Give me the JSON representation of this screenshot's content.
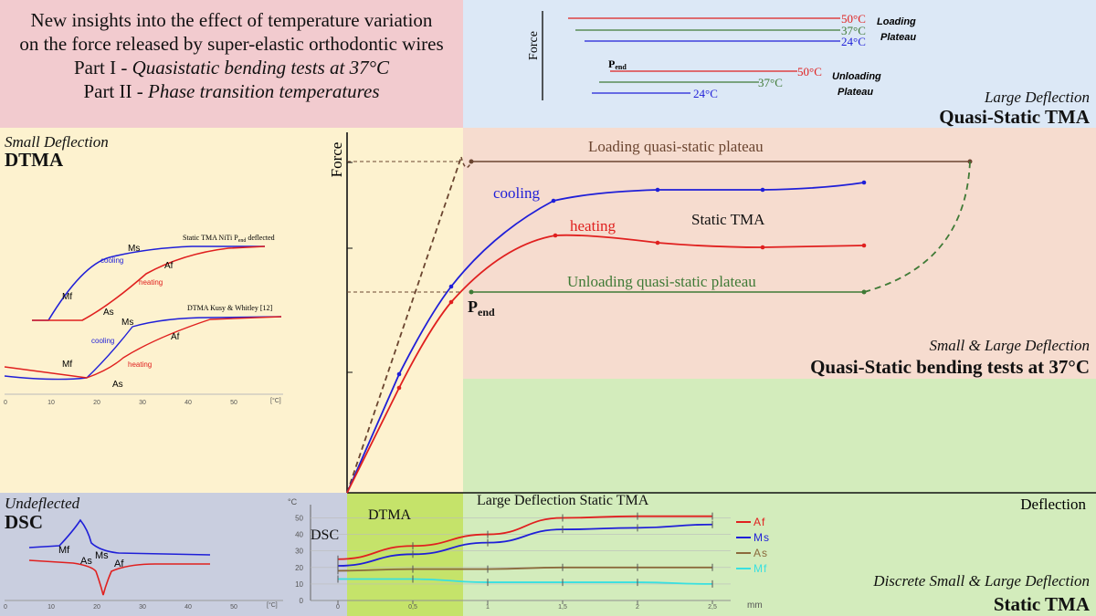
{
  "title": {
    "line1": "New insights into the effect of temperature variation",
    "line2": "on the force released by super-elastic orthodontic wires",
    "line3_prefix": "Part I - ",
    "line3_italic": "Quasistatic bending tests at 37°C",
    "line4_prefix": "Part II - ",
    "line4_italic": "Phase transition temperatures"
  },
  "top_right": {
    "y_label": "Force",
    "loading": [
      "50°C",
      "37°C",
      "24°C"
    ],
    "loading_label": [
      "Loading",
      "Plateau"
    ],
    "unloading": [
      "50°C",
      "37°C",
      "24°C"
    ],
    "unloading_label": [
      "Unloading",
      "Plateau"
    ],
    "pend": "P",
    "pend_sub": "end",
    "caption_italic": "Large Deflection",
    "caption_bold": "Quasi-Static TMA"
  },
  "left_panel": {
    "caption_italic": "Small Deflection",
    "caption_bold": "DTMA",
    "curve1_title": "Static TMA NiTi P",
    "curve1_title_sub": "end",
    "curve1_title_suffix": " deflected",
    "curve2_title": "DTMA Kusy & Whitley [12]",
    "labels": {
      "ms": "Ms",
      "mf": "Mf",
      "as": "As",
      "af": "Af",
      "cooling": "cooling",
      "heating": "heating"
    },
    "x_ticks": [
      "0",
      "10",
      "20",
      "30",
      "40",
      "50"
    ],
    "x_unit": "[°C]"
  },
  "main": {
    "y_label": "Force",
    "x_label": "Deflection",
    "loading_plateau": "Loading quasi-static plateau",
    "unloading_plateau": "Unloading quasi-static plateau",
    "cooling": "cooling",
    "heating": "heating",
    "static_tma": "Static TMA",
    "pend": "P",
    "pend_sub": "end",
    "caption_italic": "Small & Large Deflection",
    "caption_bold": "Quasi-Static bending tests at 37°C"
  },
  "dsc_panel": {
    "caption_italic": "Undeflected",
    "caption_bold": "DSC",
    "labels": {
      "mf": "Mf",
      "as": "As",
      "ms": "Ms",
      "af": "Af"
    },
    "x_ticks": [
      "0",
      "10",
      "20",
      "30",
      "40",
      "50"
    ],
    "x_unit": "[°C]"
  },
  "bottom_chart": {
    "y_unit": "°C",
    "dsc_label": "DSC",
    "dtma_label": "DTMA",
    "title": "Large Deflection Static TMA",
    "x_unit": "mm",
    "legend": [
      "Af",
      "Ms",
      "As",
      "Mf"
    ],
    "caption_italic": "Discrete Small & Large Deflection",
    "caption_bold": "Static TMA"
  },
  "colors": {
    "red": "#e0201f",
    "blue": "#1f1fd8",
    "green": "#3f7a36",
    "brown": "#6b4530",
    "cyan": "#38e0e0",
    "mf_brown": "#8b6a3c"
  },
  "chart_data": {
    "type": "line",
    "title": "Large Deflection Static TMA",
    "xlabel": "",
    "ylabel": "°C",
    "x_unit": "mm",
    "x": [
      0,
      0.5,
      1,
      1.5,
      2,
      2.5
    ],
    "x_tick_labels": [
      "0",
      "0,5",
      "1",
      "1,5",
      "2",
      "2,5"
    ],
    "y_ticks": [
      0,
      10,
      20,
      30,
      40,
      50
    ],
    "ylim": [
      0,
      58
    ],
    "series": [
      {
        "name": "Af",
        "values": [
          25,
          33,
          40,
          50,
          51,
          51
        ]
      },
      {
        "name": "Ms",
        "values": [
          21,
          28,
          35,
          43,
          44,
          46
        ]
      },
      {
        "name": "As",
        "values": [
          18,
          19,
          19,
          20,
          20,
          20
        ]
      },
      {
        "name": "Mf",
        "values": [
          13,
          13,
          11,
          11,
          11,
          10
        ]
      }
    ],
    "legend": "right"
  }
}
